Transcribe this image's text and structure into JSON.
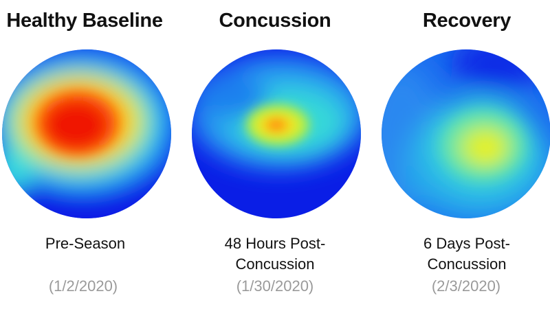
{
  "colors": {
    "deep_blue": "#0a22e6",
    "blue": "#1a5cf0",
    "cyan": "#2ad8ea",
    "yellow": "#f0f020",
    "orange": "#ff8a10",
    "red": "#f01a00",
    "date_gray": "#9a9a9a"
  },
  "panels": [
    {
      "title": "Healthy Baseline",
      "line1": "Pre-Season",
      "line2": "",
      "date": "(1/2/2020)"
    },
    {
      "title": "Concussion",
      "line1": "48 Hours Post-",
      "line2": "Concussion",
      "date": "(1/30/2020)"
    },
    {
      "title": "Recovery",
      "line1": "6 Days Post-",
      "line2": "Concussion",
      "date": "(2/3/2020)"
    }
  ]
}
